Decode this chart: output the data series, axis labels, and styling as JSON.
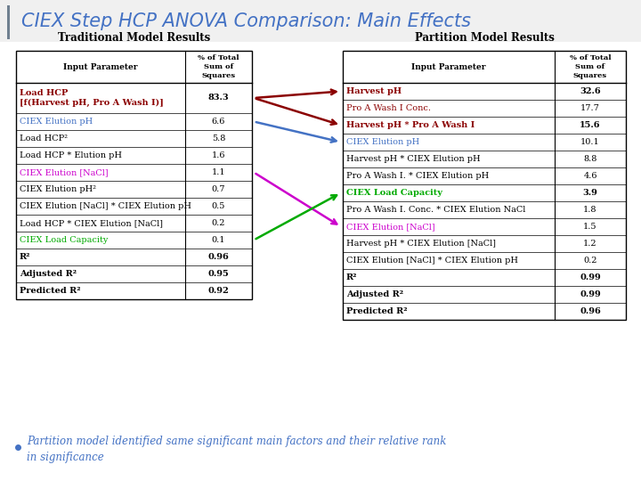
{
  "title": "CIEX Step HCP ANOVA Comparison: Main Effects",
  "title_color": "#4472C4",
  "subtitle_left": "Traditional Model Results",
  "subtitle_right": "Partition Model Results",
  "traditional_rows": [
    {
      "text": "Load HCP\n[f(Harvest pH, Pro A Wash I)]",
      "value": "83.3",
      "color": "#8B0000",
      "bold": true,
      "tall": true
    },
    {
      "text": "CIEX Elution pH",
      "value": "6.6",
      "color": "#4472C4",
      "bold": false,
      "tall": false
    },
    {
      "text": "Load HCP²",
      "value": "5.8",
      "color": "#000000",
      "bold": false,
      "tall": false
    },
    {
      "text": "Load HCP * Elution pH",
      "value": "1.6",
      "color": "#000000",
      "bold": false,
      "tall": false
    },
    {
      "text": "CIEX Elution [NaCl]",
      "value": "1.1",
      "color": "#CC00CC",
      "bold": false,
      "tall": false
    },
    {
      "text": "CIEX Elution pH²",
      "value": "0.7",
      "color": "#000000",
      "bold": false,
      "tall": false
    },
    {
      "text": "CIEX Elution [NaCl] * CIEX Elution pH",
      "value": "0.5",
      "color": "#000000",
      "bold": false,
      "tall": false
    },
    {
      "text": "Load HCP * CIEX Elution [NaCl]",
      "value": "0.2",
      "color": "#000000",
      "bold": false,
      "tall": false
    },
    {
      "text": "CIEX Load Capacity",
      "value": "0.1",
      "color": "#00AA00",
      "bold": false,
      "tall": false
    },
    {
      "text": "R²",
      "value": "0.96",
      "color": "#000000",
      "bold": true,
      "tall": false
    },
    {
      "text": "Adjusted R²",
      "value": "0.95",
      "color": "#000000",
      "bold": true,
      "tall": false
    },
    {
      "text": "Predicted R²",
      "value": "0.92",
      "color": "#000000",
      "bold": true,
      "tall": false
    }
  ],
  "partition_rows": [
    {
      "text": "Harvest pH",
      "value": "32.6",
      "color": "#8B0000",
      "bold": true,
      "tall": false
    },
    {
      "text": "Pro A Wash I Conc.",
      "value": "17.7",
      "color": "#8B0000",
      "bold": false,
      "tall": false
    },
    {
      "text": "Harvest pH * Pro A Wash I",
      "value": "15.6",
      "color": "#8B0000",
      "bold": true,
      "tall": false
    },
    {
      "text": "CIEX Elution pH",
      "value": "10.1",
      "color": "#4472C4",
      "bold": false,
      "tall": false
    },
    {
      "text": "Harvest pH * CIEX Elution pH",
      "value": "8.8",
      "color": "#000000",
      "bold": false,
      "tall": false
    },
    {
      "text": "Pro A Wash I. * CIEX Elution pH",
      "value": "4.6",
      "color": "#000000",
      "bold": false,
      "tall": false
    },
    {
      "text": "CIEX Load Capacity",
      "value": "3.9",
      "color": "#00AA00",
      "bold": true,
      "tall": false
    },
    {
      "text": "Pro A Wash I. Conc. * CIEX Elution NaCl",
      "value": "1.8",
      "color": "#000000",
      "bold": false,
      "tall": false
    },
    {
      "text": "CIEX Elution [NaCl]",
      "value": "1.5",
      "color": "#CC00CC",
      "bold": false,
      "tall": false
    },
    {
      "text": "Harvest pH * CIEX Elution [NaCl]",
      "value": "1.2",
      "color": "#000000",
      "bold": false,
      "tall": false
    },
    {
      "text": "CIEX Elution [NaCl] * CIEX Elution pH",
      "value": "0.2",
      "color": "#000000",
      "bold": false,
      "tall": false
    },
    {
      "text": "R²",
      "value": "0.99",
      "color": "#000000",
      "bold": true,
      "tall": false
    },
    {
      "text": "Adjusted R²",
      "value": "0.99",
      "color": "#000000",
      "bold": true,
      "tall": false
    },
    {
      "text": "Predicted R²",
      "value": "0.96",
      "color": "#000000",
      "bold": true,
      "tall": false
    }
  ],
  "arrows": [
    {
      "src_table": "left",
      "src_row": 0,
      "dst_table": "right",
      "dst_row": 0,
      "color": "#8B0000"
    },
    {
      "src_table": "left",
      "src_row": 0,
      "dst_table": "right",
      "dst_row": 2,
      "color": "#8B0000"
    },
    {
      "src_table": "left",
      "src_row": 1,
      "dst_table": "right",
      "dst_row": 3,
      "color": "#4472C4"
    },
    {
      "src_table": "left",
      "src_row": 4,
      "dst_table": "right",
      "dst_row": 8,
      "color": "#CC00CC"
    },
    {
      "src_table": "left",
      "src_row": 8,
      "dst_table": "right",
      "dst_row": 6,
      "color": "#00AA00"
    }
  ],
  "bullet_text": "Partition model identified same significant main factors and their relative rank\nin significance",
  "bullet_color": "#4472C4",
  "bg_color": "#FFFFFF",
  "slide_bg": "#E8E8E8"
}
